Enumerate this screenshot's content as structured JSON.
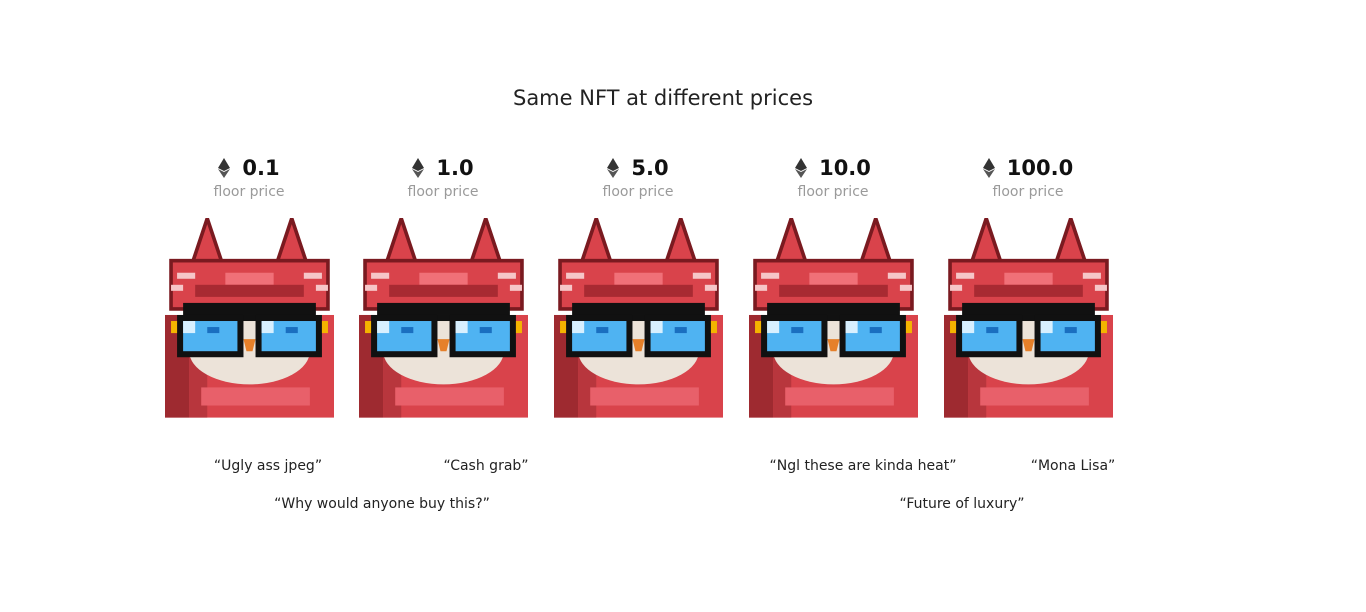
{
  "title": "Same NFT at different prices",
  "cards": [
    {
      "price": "0.1",
      "label": "floor price"
    },
    {
      "price": "1.0",
      "label": "floor price"
    },
    {
      "price": "5.0",
      "label": "floor price"
    },
    {
      "price": "10.0",
      "label": "floor price"
    },
    {
      "price": "100.0",
      "label": "floor price"
    }
  ],
  "captions": {
    "ugly": "“Ugly ass jpeg”",
    "cash": "“Cash grab”",
    "heat": "“Ngl these are kinda heat”",
    "mona": "“Mona Lisa”",
    "why": "“Why would anyone buy this?”",
    "future": "“Future of luxury”"
  },
  "icons": {
    "currency": "ethereum-icon"
  },
  "colors": {
    "red": "#d9434b",
    "dark_red": "#7a1a20",
    "lens": "#4fb3f2",
    "cream": "#ece3d9"
  }
}
